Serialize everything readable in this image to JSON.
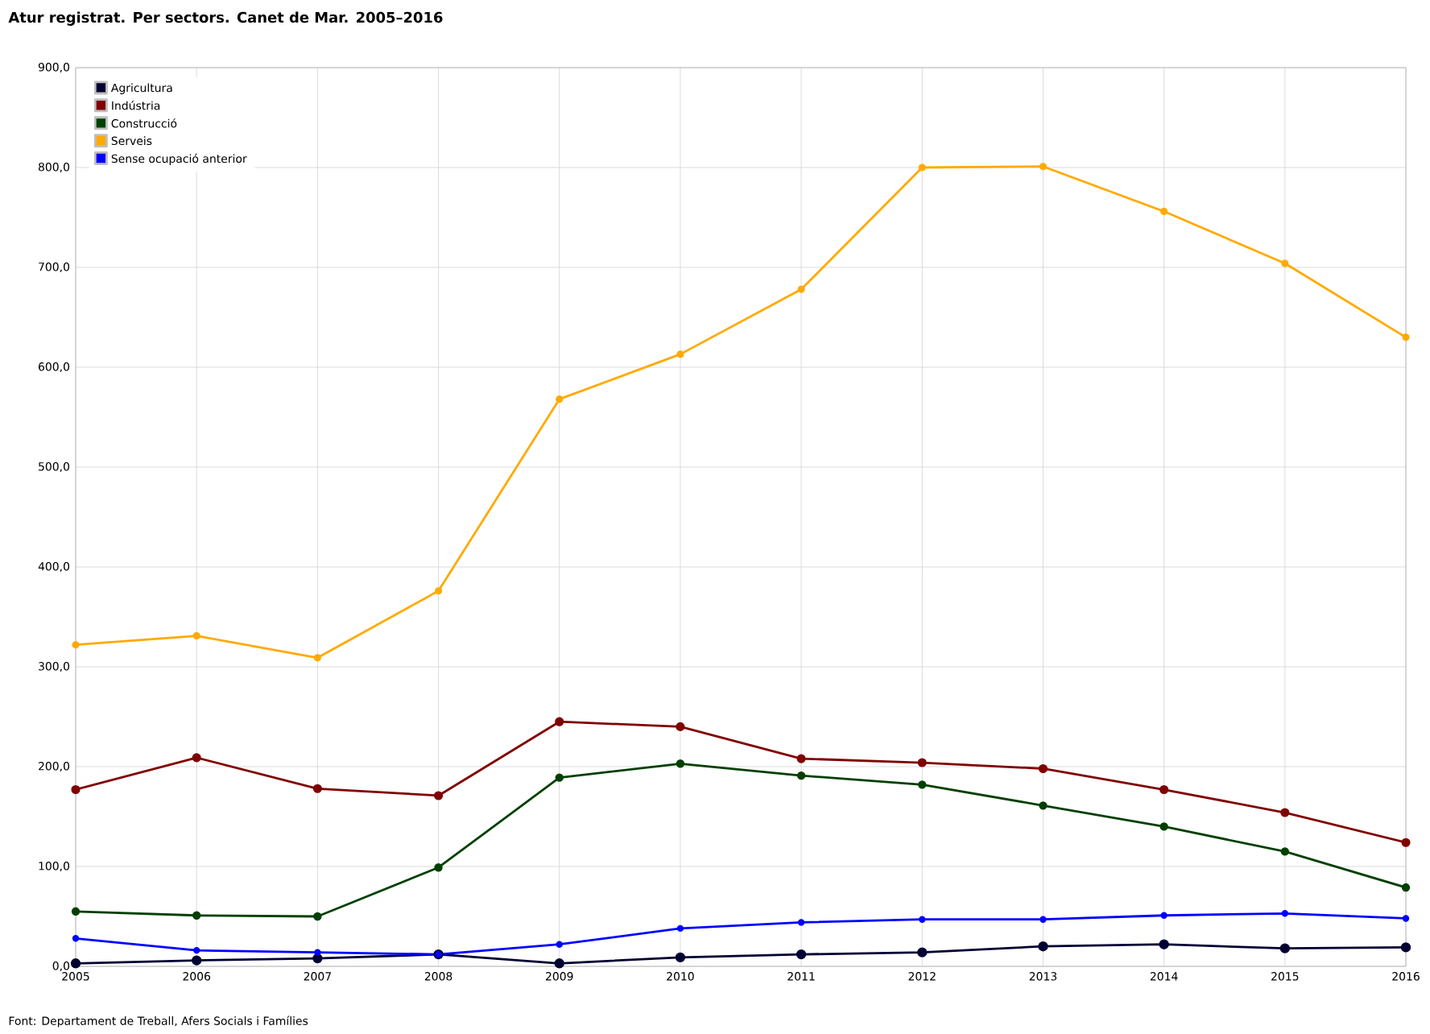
{
  "chart_data": {
    "type": "line",
    "title": "Atur registrat. Per sectors. Canet de Mar. 2005–2016",
    "x": [
      2005,
      2006,
      2007,
      2008,
      2009,
      2010,
      2011,
      2012,
      2013,
      2014,
      2015,
      2016
    ],
    "series": [
      {
        "name": "Agricultura",
        "color": "#000033",
        "values": [
          3,
          6,
          8,
          12,
          3,
          9,
          12,
          14,
          20,
          22,
          18,
          19
        ]
      },
      {
        "name": "Indústria",
        "color": "#800000",
        "values": [
          177,
          209,
          178,
          171,
          245,
          240,
          208,
          204,
          198,
          177,
          154,
          124
        ]
      },
      {
        "name": "Construcció",
        "color": "#004000",
        "values": [
          55,
          51,
          50,
          99,
          189,
          203,
          191,
          182,
          161,
          140,
          115,
          79
        ]
      },
      {
        "name": "Serveis",
        "color": "#ffaa00",
        "values": [
          322,
          331,
          309,
          376,
          568,
          613,
          678,
          800,
          801,
          756,
          704,
          630
        ]
      },
      {
        "name": "Sense ocupació anterior",
        "color": "#0000ff",
        "values": [
          28,
          16,
          14,
          12,
          22,
          38,
          44,
          47,
          47,
          51,
          53,
          48
        ]
      }
    ],
    "xlim": [
      2005,
      2016
    ],
    "xticks": [
      2005,
      2006,
      2007,
      2008,
      2009,
      2010,
      2011,
      2012,
      2013,
      2014,
      2015,
      2016
    ],
    "ylim": [
      0,
      900
    ],
    "yticks": [
      {
        "value": 0,
        "label": "0,0"
      },
      {
        "value": 100,
        "label": "100,0"
      },
      {
        "value": 200,
        "label": "200,0"
      },
      {
        "value": 300,
        "label": "300,0"
      },
      {
        "value": 400,
        "label": "400,0"
      },
      {
        "value": 500,
        "label": "500,0"
      },
      {
        "value": 600,
        "label": "600,0"
      },
      {
        "value": 700,
        "label": "700,0"
      },
      {
        "value": 800,
        "label": "800,0"
      },
      {
        "value": 900,
        "label": "900,0"
      }
    ],
    "grid": true,
    "legend": "top left",
    "marker": "circle",
    "line_style": "solid",
    "annotations": [
      "Font: Departament de Treball, Afers Socials i Famílies"
    ]
  }
}
